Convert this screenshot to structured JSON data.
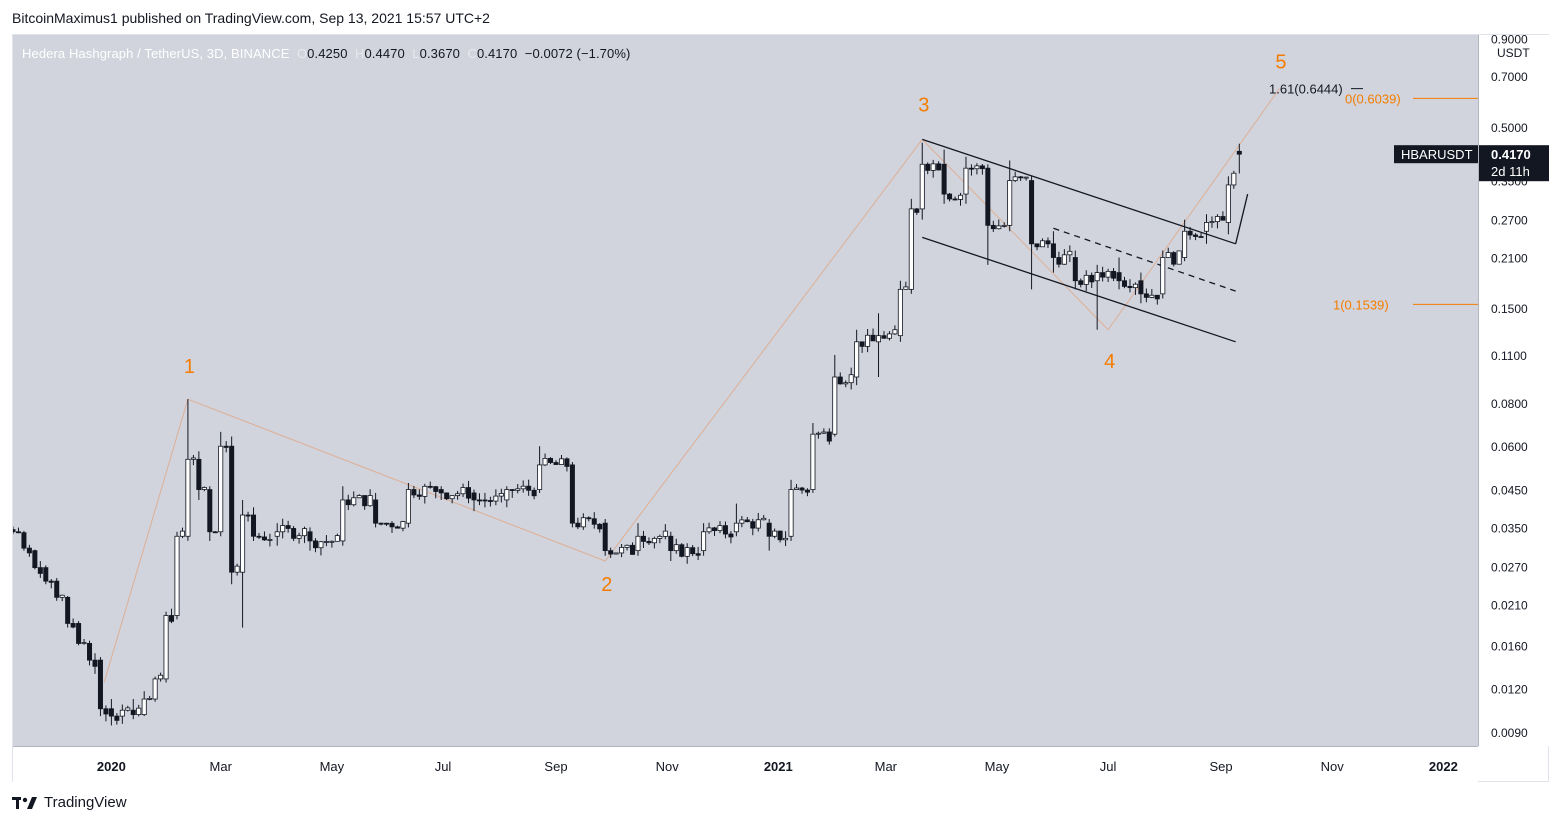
{
  "header": {
    "published": "BitcoinMaximus1 published on TradingView.com, Sep 13, 2021 15:57 UTC+2"
  },
  "legend": {
    "symbol": "Hedera Hashgraph / TetherUS, 3D, BINANCE",
    "o_label": "O",
    "o": "0.4250",
    "h_label": "H",
    "h": "0.4470",
    "l_label": "L",
    "l": "0.3670",
    "c_label": "C",
    "c": "0.4170",
    "change": "−0.0072 (−1.70%)"
  },
  "price_axis": {
    "unit": "USDT",
    "ticks": [
      "0.9000",
      "0.7000",
      "0.5000",
      "0.3500",
      "0.2700",
      "0.2100",
      "0.1500",
      "0.1100",
      "0.0800",
      "0.0600",
      "0.0450",
      "0.0350",
      "0.0270",
      "0.0210",
      "0.0160",
      "0.0120",
      "0.0090"
    ]
  },
  "time_axis": {
    "ticks": [
      "2020",
      "Mar",
      "May",
      "Jul",
      "Sep",
      "Nov",
      "2021",
      "Mar",
      "May",
      "Jul",
      "Sep",
      "Nov",
      "2022"
    ]
  },
  "price_tag": {
    "symbol": "HBARUSDT",
    "price": "0.4170",
    "countdown": "2d 11h"
  },
  "fib": {
    "ext_label": "1.61(0.6444)",
    "level0_label": "0(0.6039)",
    "level1_label": "1(0.1539)"
  },
  "waves": [
    "1",
    "2",
    "3",
    "4",
    "5"
  ],
  "footer": {
    "brand": "TradingView"
  },
  "colors": {
    "orange": "#f57c00",
    "up": "#ffffff",
    "down": "#131722",
    "plot_bg": "#d1d4dc"
  },
  "chart_data": {
    "type": "candlestick",
    "title": "Hedera Hashgraph / TetherUS, 3D, BINANCE",
    "scale": "log",
    "ylim": [
      0.0082,
      0.92
    ],
    "x_range": [
      "2019-11-08",
      "2022-01-20"
    ],
    "ohlc_sample": [
      [
        "2019-11-08",
        0.0345,
        0.0352,
        0.0335,
        0.034
      ],
      [
        "2019-11-14",
        0.0338,
        0.0342,
        0.03,
        0.0305
      ],
      [
        "2019-11-20",
        0.03,
        0.0302,
        0.0265,
        0.0268
      ],
      [
        "2019-11-26",
        0.0268,
        0.0272,
        0.024,
        0.0245
      ],
      [
        "2019-12-02",
        0.0245,
        0.025,
        0.0215,
        0.022
      ],
      [
        "2019-12-08",
        0.022,
        0.0222,
        0.018,
        0.0185
      ],
      [
        "2019-12-14",
        0.0185,
        0.0188,
        0.016,
        0.0162
      ],
      [
        "2019-12-20",
        0.0162,
        0.0165,
        0.014,
        0.0145
      ],
      [
        "2019-12-26",
        0.0145,
        0.0148,
        0.01,
        0.0105
      ],
      [
        "2020-01-01",
        0.0105,
        0.0112,
        0.0094,
        0.01
      ],
      [
        "2020-01-07",
        0.01,
        0.0108,
        0.0095,
        0.0104
      ],
      [
        "2020-01-13",
        0.0104,
        0.0112,
        0.0098,
        0.0101
      ],
      [
        "2020-01-19",
        0.0101,
        0.0118,
        0.01,
        0.0112
      ],
      [
        "2020-01-25",
        0.0112,
        0.013,
        0.011,
        0.0128
      ],
      [
        "2020-01-31",
        0.0128,
        0.02,
        0.0125,
        0.0195
      ],
      [
        "2020-02-06",
        0.0195,
        0.034,
        0.019,
        0.033
      ],
      [
        "2020-02-12",
        0.033,
        0.082,
        0.032,
        0.055
      ],
      [
        "2020-02-18",
        0.055,
        0.058,
        0.042,
        0.045
      ],
      [
        "2020-02-24",
        0.045,
        0.046,
        0.032,
        0.034
      ],
      [
        "2020-03-01",
        0.034,
        0.066,
        0.033,
        0.06
      ],
      [
        "2020-03-07",
        0.06,
        0.064,
        0.024,
        0.026
      ],
      [
        "2020-03-13",
        0.026,
        0.042,
        0.018,
        0.038
      ],
      [
        "2020-03-19",
        0.038,
        0.04,
        0.032,
        0.033
      ],
      [
        "2020-04-01",
        0.033,
        0.036,
        0.031,
        0.034
      ],
      [
        "2020-04-19",
        0.034,
        0.035,
        0.03,
        0.032
      ],
      [
        "2020-05-07",
        0.032,
        0.046,
        0.031,
        0.042
      ],
      [
        "2020-05-25",
        0.042,
        0.044,
        0.035,
        0.036
      ],
      [
        "2020-06-12",
        0.036,
        0.047,
        0.035,
        0.045
      ],
      [
        "2020-06-30",
        0.045,
        0.046,
        0.042,
        0.044
      ],
      [
        "2020-07-18",
        0.044,
        0.045,
        0.039,
        0.042
      ],
      [
        "2020-08-05",
        0.042,
        0.046,
        0.04,
        0.045
      ],
      [
        "2020-08-23",
        0.045,
        0.06,
        0.044,
        0.053
      ],
      [
        "2020-09-10",
        0.053,
        0.054,
        0.035,
        0.036
      ],
      [
        "2020-09-28",
        0.036,
        0.037,
        0.029,
        0.03
      ],
      [
        "2020-10-16",
        0.03,
        0.036,
        0.029,
        0.033
      ],
      [
        "2020-11-03",
        0.033,
        0.034,
        0.028,
        0.03
      ],
      [
        "2020-11-21",
        0.03,
        0.036,
        0.029,
        0.034
      ],
      [
        "2020-12-09",
        0.034,
        0.041,
        0.033,
        0.036
      ],
      [
        "2020-12-27",
        0.036,
        0.037,
        0.03,
        0.033
      ],
      [
        "2021-01-08",
        0.033,
        0.048,
        0.032,
        0.045
      ],
      [
        "2021-01-20",
        0.045,
        0.07,
        0.044,
        0.065
      ],
      [
        "2021-02-01",
        0.065,
        0.11,
        0.064,
        0.095
      ],
      [
        "2021-02-13",
        0.095,
        0.13,
        0.09,
        0.12
      ],
      [
        "2021-02-25",
        0.12,
        0.145,
        0.095,
        0.125
      ],
      [
        "2021-03-09",
        0.125,
        0.18,
        0.12,
        0.17
      ],
      [
        "2021-03-15",
        0.17,
        0.31,
        0.165,
        0.29
      ],
      [
        "2021-03-21",
        0.29,
        0.45,
        0.27,
        0.39
      ],
      [
        "2021-04-02",
        0.39,
        0.43,
        0.3,
        0.32
      ],
      [
        "2021-04-14",
        0.32,
        0.41,
        0.3,
        0.38
      ],
      [
        "2021-04-26",
        0.38,
        0.39,
        0.2,
        0.26
      ],
      [
        "2021-05-08",
        0.26,
        0.4,
        0.25,
        0.35
      ],
      [
        "2021-05-20",
        0.35,
        0.36,
        0.17,
        0.23
      ],
      [
        "2021-06-01",
        0.23,
        0.25,
        0.19,
        0.21
      ],
      [
        "2021-06-13",
        0.21,
        0.22,
        0.17,
        0.18
      ],
      [
        "2021-06-25",
        0.18,
        0.2,
        0.13,
        0.19
      ],
      [
        "2021-07-07",
        0.19,
        0.21,
        0.17,
        0.18
      ],
      [
        "2021-07-19",
        0.18,
        0.19,
        0.155,
        0.165
      ],
      [
        "2021-07-31",
        0.165,
        0.22,
        0.16,
        0.21
      ],
      [
        "2021-08-12",
        0.21,
        0.27,
        0.205,
        0.25
      ],
      [
        "2021-08-24",
        0.25,
        0.28,
        0.23,
        0.265
      ],
      [
        "2021-09-05",
        0.265,
        0.36,
        0.245,
        0.34
      ],
      [
        "2021-09-11",
        0.425,
        0.447,
        0.367,
        0.417
      ]
    ],
    "channel": {
      "upper": [
        [
          "2021-03-21",
          0.46
        ],
        [
          "2021-09-09",
          0.23
        ]
      ],
      "lower": [
        [
          "2021-03-21",
          0.24
        ],
        [
          "2021-09-09",
          0.12
        ]
      ],
      "mid_dashed": [
        [
          "2021-06-01",
          0.255
        ],
        [
          "2021-09-09",
          0.168
        ]
      ]
    },
    "waves": [
      {
        "label": "1",
        "date": "2020-02-12",
        "price": 0.082
      },
      {
        "label": "2",
        "date": "2020-09-28",
        "price": 0.028
      },
      {
        "label": "3",
        "date": "2021-03-21",
        "price": 0.46
      },
      {
        "label": "4",
        "date": "2021-07-01",
        "price": 0.13
      },
      {
        "label": "5",
        "date": "2021-10-03",
        "price": 0.6444
      }
    ],
    "fib_levels": [
      {
        "label": "1.61(0.6444)",
        "price": 0.6444
      },
      {
        "label": "0(0.6039)",
        "price": 0.6039
      },
      {
        "label": "1(0.1539)",
        "price": 0.1539
      }
    ]
  }
}
